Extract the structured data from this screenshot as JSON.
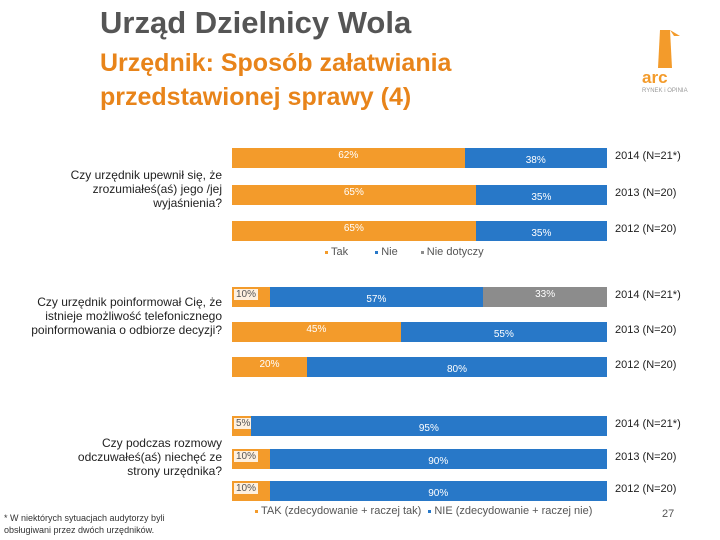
{
  "header": {
    "title": "Urząd Dzielnicy Wola",
    "subtitle": "Urzędnik: Sposób załatwiania przedstawionej sprawy (4)"
  },
  "colors": {
    "tak": "#f39b2b",
    "nie": "#2878c8",
    "nie_dotyczy": "#8c8c8c",
    "title": "#555555",
    "accent": "#e8841a"
  },
  "chart_data": [
    {
      "type": "bar",
      "stacked": true,
      "orientation": "horizontal",
      "question": "Czy urzędnik upewnił się, że zrozumiałeś(aś) jego /jej wyjaśnienia?",
      "categories": [
        "2014 (N=21*)",
        "2013 (N=20)",
        "2012 (N=20)"
      ],
      "series": [
        {
          "name": "Tak",
          "values": [
            62,
            65,
            65
          ],
          "labels": [
            "62%",
            "65%",
            "65%"
          ]
        },
        {
          "name": "Nie",
          "values": [
            38,
            35,
            35
          ],
          "labels": [
            "38%",
            "35%",
            "35%"
          ]
        }
      ],
      "legend": [
        "Tak",
        "Nie",
        "Nie dotyczy"
      ]
    },
    {
      "type": "bar",
      "stacked": true,
      "orientation": "horizontal",
      "question": "Czy urzędnik poinformował Cię, że istnieje możliwość telefonicznego poinformowania o odbiorze decyzji?",
      "categories": [
        "2014 (N=21*)",
        "2013 (N=20)",
        "2012 (N=20)"
      ],
      "series": [
        {
          "name": "Tak",
          "values": [
            10,
            45,
            20
          ],
          "labels": [
            "10%",
            "45%",
            "20%"
          ]
        },
        {
          "name": "Nie",
          "values": [
            57,
            55,
            80
          ],
          "labels": [
            "57%",
            "55%",
            "80%"
          ]
        },
        {
          "name": "Nie dotyczy",
          "values": [
            33,
            0,
            0
          ],
          "labels": [
            "33%",
            "",
            ""
          ]
        }
      ]
    },
    {
      "type": "bar",
      "stacked": true,
      "orientation": "horizontal",
      "question": "Czy podczas rozmowy odczuwałeś(aś) niechęć ze strony urzędnika?",
      "categories": [
        "2014 (N=21*)",
        "2013 (N=20)",
        "2012 (N=20)"
      ],
      "series": [
        {
          "name": "TAK (zdecydowanie + raczej tak)",
          "values": [
            5,
            10,
            10
          ],
          "labels": [
            "5%",
            "10%",
            "10%"
          ]
        },
        {
          "name": "NIE (zdecydowanie + raczej nie)",
          "values": [
            95,
            90,
            90
          ],
          "labels": [
            "95%",
            "90%",
            "90%"
          ]
        }
      ],
      "legend": [
        "TAK (zdecydowanie + raczej tak)",
        "NIE (zdecydowanie + raczej nie)"
      ]
    }
  ],
  "footnote": "* W niektórych sytuacjach audytorzy byli obsługiwani przez dwóch urzędników.",
  "page_number": "27",
  "logo": {
    "name": "arc",
    "tagline": "RYNEK i OPINIA",
    "icon": "arc-logo-icon"
  }
}
